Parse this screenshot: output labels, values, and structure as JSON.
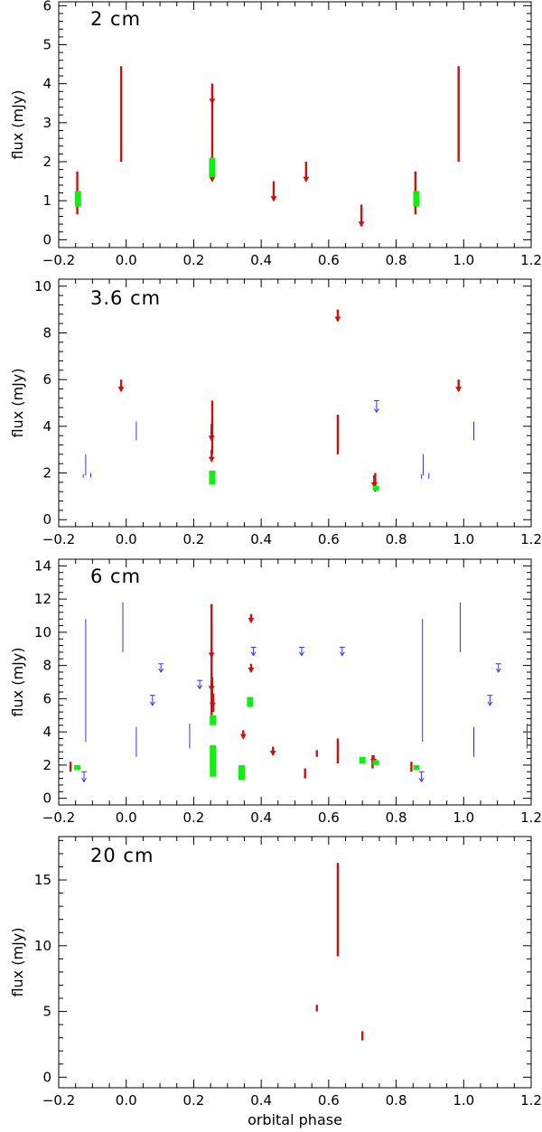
{
  "colors": {
    "red": "#cc1111",
    "green": "#11ee11",
    "blue": "#3333ee",
    "axis": "#000000"
  },
  "chart_data": [
    {
      "type": "errorbar",
      "title": "2 cm",
      "ylabel": "flux (mJy)",
      "xlabel": "",
      "xlim": [
        -0.2,
        1.2
      ],
      "ylim": [
        -0.2,
        6.1
      ],
      "xticks": [
        -0.2,
        0.0,
        0.2,
        0.4,
        0.6,
        0.8,
        1.0,
        1.2
      ],
      "xtick_labels": [
        "−0.2",
        "0.0",
        "0.2",
        "0.4",
        "0.6",
        "0.8",
        "1.0",
        "1.2"
      ],
      "yticks": [
        0,
        1,
        2,
        3,
        4,
        5,
        6
      ],
      "ytick_labels": [
        "0",
        "1",
        "2",
        "3",
        "4",
        "5",
        "6"
      ],
      "series": [
        {
          "name": "red",
          "color": "red",
          "kind": "bar",
          "points": [
            {
              "x": -0.145,
              "lo": 0.65,
              "hi": 1.75
            },
            {
              "x": -0.015,
              "lo": 2.0,
              "hi": 4.45
            },
            {
              "x": 0.255,
              "lo": 2.0,
              "hi": 4.0
            },
            {
              "x": 0.857,
              "lo": 0.65,
              "hi": 1.75
            },
            {
              "x": 0.985,
              "lo": 2.0,
              "hi": 4.45
            }
          ]
        },
        {
          "name": "red upper limits",
          "color": "red",
          "kind": "upper",
          "points": [
            {
              "x": 0.255,
              "lo": 3.5,
              "hi": 4.0
            },
            {
              "x": 0.255,
              "lo": 1.5,
              "hi": 2.0
            },
            {
              "x": 0.437,
              "lo": 1.0,
              "hi": 1.5
            },
            {
              "x": 0.533,
              "lo": 1.5,
              "hi": 2.0
            },
            {
              "x": 0.697,
              "lo": 0.35,
              "hi": 0.9
            }
          ]
        },
        {
          "name": "green",
          "color": "green",
          "kind": "thick",
          "points": [
            {
              "x": -0.143,
              "lo": 0.85,
              "hi": 1.25
            },
            {
              "x": 0.255,
              "lo": 1.6,
              "hi": 2.1
            },
            {
              "x": 0.86,
              "lo": 0.85,
              "hi": 1.25
            }
          ]
        }
      ]
    },
    {
      "type": "errorbar",
      "title": "3.6 cm",
      "ylabel": "flux (mJy)",
      "xlabel": "",
      "xlim": [
        -0.2,
        1.2
      ],
      "ylim": [
        -0.3,
        10.3
      ],
      "xticks": [
        -0.2,
        0.0,
        0.2,
        0.4,
        0.6,
        0.8,
        1.0,
        1.2
      ],
      "xtick_labels": [
        "−0.2",
        "0.0",
        "0.2",
        "0.4",
        "0.6",
        "0.8",
        "1.0",
        "1.2"
      ],
      "yticks": [
        0,
        2,
        4,
        6,
        8,
        10
      ],
      "ytick_labels": [
        "0",
        "2",
        "4",
        "6",
        "8",
        "10"
      ],
      "series": [
        {
          "name": "red",
          "color": "red",
          "kind": "bar",
          "points": [
            {
              "x": 0.255,
              "lo": 2.8,
              "hi": 5.1
            },
            {
              "x": 0.627,
              "lo": 2.8,
              "hi": 4.5
            },
            {
              "x": 0.738,
              "lo": 1.2,
              "hi": 2.0
            }
          ]
        },
        {
          "name": "red upper limits",
          "color": "red",
          "kind": "upper",
          "points": [
            {
              "x": -0.015,
              "lo": 5.5,
              "hi": 6.0
            },
            {
              "x": 0.253,
              "lo": 3.4,
              "hi": 4.1
            },
            {
              "x": 0.253,
              "lo": 2.5,
              "hi": 3.0
            },
            {
              "x": 0.627,
              "lo": 8.5,
              "hi": 9.0
            },
            {
              "x": 0.735,
              "lo": 1.4,
              "hi": 1.9
            },
            {
              "x": 0.985,
              "lo": 5.5,
              "hi": 6.0
            }
          ]
        },
        {
          "name": "green",
          "color": "green",
          "kind": "thick",
          "points": [
            {
              "x": 0.255,
              "lo": 1.5,
              "hi": 2.1
            },
            {
              "x": 0.74,
              "lo": 1.25,
              "hi": 1.45
            }
          ]
        },
        {
          "name": "blue",
          "color": "blue",
          "kind": "thin",
          "points": [
            {
              "x": -0.127,
              "lo": 1.8,
              "hi": 1.95
            },
            {
              "x": -0.12,
              "lo": 1.9,
              "hi": 2.8
            },
            {
              "x": -0.105,
              "lo": 1.8,
              "hi": 2.0
            },
            {
              "x": 0.03,
              "lo": 3.4,
              "hi": 4.2
            },
            {
              "x": 0.875,
              "lo": 1.75,
              "hi": 1.95
            },
            {
              "x": 0.88,
              "lo": 1.9,
              "hi": 2.8
            },
            {
              "x": 0.897,
              "lo": 1.75,
              "hi": 2.0
            },
            {
              "x": 1.03,
              "lo": 3.4,
              "hi": 4.2
            }
          ]
        },
        {
          "name": "blue upper limits",
          "color": "blue",
          "kind": "upper-thin",
          "points": [
            {
              "x": 0.742,
              "lo": 4.6,
              "hi": 5.1
            }
          ]
        }
      ]
    },
    {
      "type": "errorbar",
      "title": "6 cm",
      "ylabel": "flux (mJy)",
      "xlabel": "",
      "xlim": [
        -0.2,
        1.2
      ],
      "ylim": [
        -0.4,
        14.4
      ],
      "xticks": [
        -0.2,
        0.0,
        0.2,
        0.4,
        0.6,
        0.8,
        1.0,
        1.2
      ],
      "xtick_labels": [
        "−0.2",
        "0.0",
        "0.2",
        "0.4",
        "0.6",
        "0.8",
        "1.0",
        "1.2"
      ],
      "yticks": [
        0,
        2,
        4,
        6,
        8,
        10,
        12,
        14
      ],
      "ytick_labels": [
        "0",
        "2",
        "4",
        "6",
        "8",
        "10",
        "12",
        "14"
      ],
      "series": [
        {
          "name": "red",
          "color": "red",
          "kind": "bar",
          "points": [
            {
              "x": -0.165,
              "lo": 1.6,
              "hi": 2.2
            },
            {
              "x": 0.253,
              "lo": 5.0,
              "hi": 11.7
            },
            {
              "x": 0.255,
              "lo": 6.0,
              "hi": 7.3
            },
            {
              "x": 0.258,
              "lo": 5.2,
              "hi": 6.3
            },
            {
              "x": 0.53,
              "lo": 1.2,
              "hi": 1.8
            },
            {
              "x": 0.565,
              "lo": 2.5,
              "hi": 2.9
            },
            {
              "x": 0.627,
              "lo": 2.1,
              "hi": 3.6
            },
            {
              "x": 0.73,
              "lo": 1.8,
              "hi": 2.6
            },
            {
              "x": 0.845,
              "lo": 1.6,
              "hi": 2.2
            }
          ]
        },
        {
          "name": "red upper limits",
          "color": "red",
          "kind": "upper",
          "points": [
            {
              "x": 0.253,
              "lo": 8.5,
              "hi": 9.0
            },
            {
              "x": 0.253,
              "lo": 6.5,
              "hi": 7.0
            },
            {
              "x": 0.256,
              "lo": 5.5,
              "hi": 6.0
            },
            {
              "x": 0.347,
              "lo": 3.6,
              "hi": 4.1
            },
            {
              "x": 0.37,
              "lo": 10.6,
              "hi": 11.1
            },
            {
              "x": 0.37,
              "lo": 7.6,
              "hi": 8.1
            },
            {
              "x": 0.435,
              "lo": 2.6,
              "hi": 3.1
            },
            {
              "x": 0.733,
              "lo": 2.1,
              "hi": 2.6
            }
          ]
        },
        {
          "name": "green",
          "color": "green",
          "kind": "thick",
          "points": [
            {
              "x": -0.145,
              "lo": 1.7,
              "hi": 2.0
            },
            {
              "x": 0.257,
              "lo": 1.3,
              "hi": 3.2
            },
            {
              "x": 0.257,
              "lo": 4.4,
              "hi": 5.0
            },
            {
              "x": 0.342,
              "lo": 1.1,
              "hi": 2.0
            },
            {
              "x": 0.367,
              "lo": 5.5,
              "hi": 6.1
            },
            {
              "x": 0.7,
              "lo": 2.1,
              "hi": 2.5
            },
            {
              "x": 0.74,
              "lo": 2.0,
              "hi": 2.3
            },
            {
              "x": 0.86,
              "lo": 1.7,
              "hi": 2.0
            }
          ]
        },
        {
          "name": "blue",
          "color": "blue",
          "kind": "thin",
          "points": [
            {
              "x": -0.12,
              "lo": 3.4,
              "hi": 10.8
            },
            {
              "x": -0.01,
              "lo": 8.8,
              "hi": 11.8
            },
            {
              "x": 0.03,
              "lo": 2.5,
              "hi": 4.3
            },
            {
              "x": 0.188,
              "lo": 3.0,
              "hi": 4.5
            },
            {
              "x": 0.878,
              "lo": 3.4,
              "hi": 10.8
            },
            {
              "x": 0.99,
              "lo": 8.8,
              "hi": 11.8
            },
            {
              "x": 1.03,
              "lo": 2.5,
              "hi": 4.3
            },
            {
              "x": 1.188,
              "lo": 3.0,
              "hi": 4.5
            }
          ]
        },
        {
          "name": "blue upper limits",
          "color": "blue",
          "kind": "upper-thin",
          "points": [
            {
              "x": -0.125,
              "lo": 1.0,
              "hi": 1.6
            },
            {
              "x": 0.078,
              "lo": 5.6,
              "hi": 6.2
            },
            {
              "x": 0.103,
              "lo": 7.6,
              "hi": 8.1
            },
            {
              "x": 0.218,
              "lo": 6.6,
              "hi": 7.1
            },
            {
              "x": 0.377,
              "lo": 8.6,
              "hi": 9.1
            },
            {
              "x": 0.52,
              "lo": 8.6,
              "hi": 9.1
            },
            {
              "x": 0.64,
              "lo": 8.6,
              "hi": 9.1
            },
            {
              "x": 0.875,
              "lo": 1.0,
              "hi": 1.6
            },
            {
              "x": 1.078,
              "lo": 5.6,
              "hi": 6.2
            },
            {
              "x": 1.103,
              "lo": 7.6,
              "hi": 8.1
            }
          ]
        }
      ]
    },
    {
      "type": "errorbar",
      "title": "20 cm",
      "ylabel": "flux (mJy)",
      "xlabel": "orbital phase",
      "xlim": [
        -0.2,
        1.2
      ],
      "ylim": [
        -0.8,
        18.3
      ],
      "xticks": [
        -0.2,
        0.0,
        0.2,
        0.4,
        0.6,
        0.8,
        1.0,
        1.2
      ],
      "xtick_labels": [
        "−0.2",
        "0.0",
        "0.2",
        "0.4",
        "0.6",
        "0.8",
        "1.0",
        "1.2"
      ],
      "yticks": [
        0,
        5,
        10,
        15
      ],
      "ytick_labels": [
        "0",
        "5",
        "10",
        "15"
      ],
      "series": [
        {
          "name": "red",
          "color": "red",
          "kind": "bar",
          "points": [
            {
              "x": 0.565,
              "lo": 5.0,
              "hi": 5.5
            },
            {
              "x": 0.627,
              "lo": 9.2,
              "hi": 16.3
            },
            {
              "x": 0.7,
              "lo": 2.8,
              "hi": 3.5
            }
          ]
        }
      ]
    }
  ]
}
